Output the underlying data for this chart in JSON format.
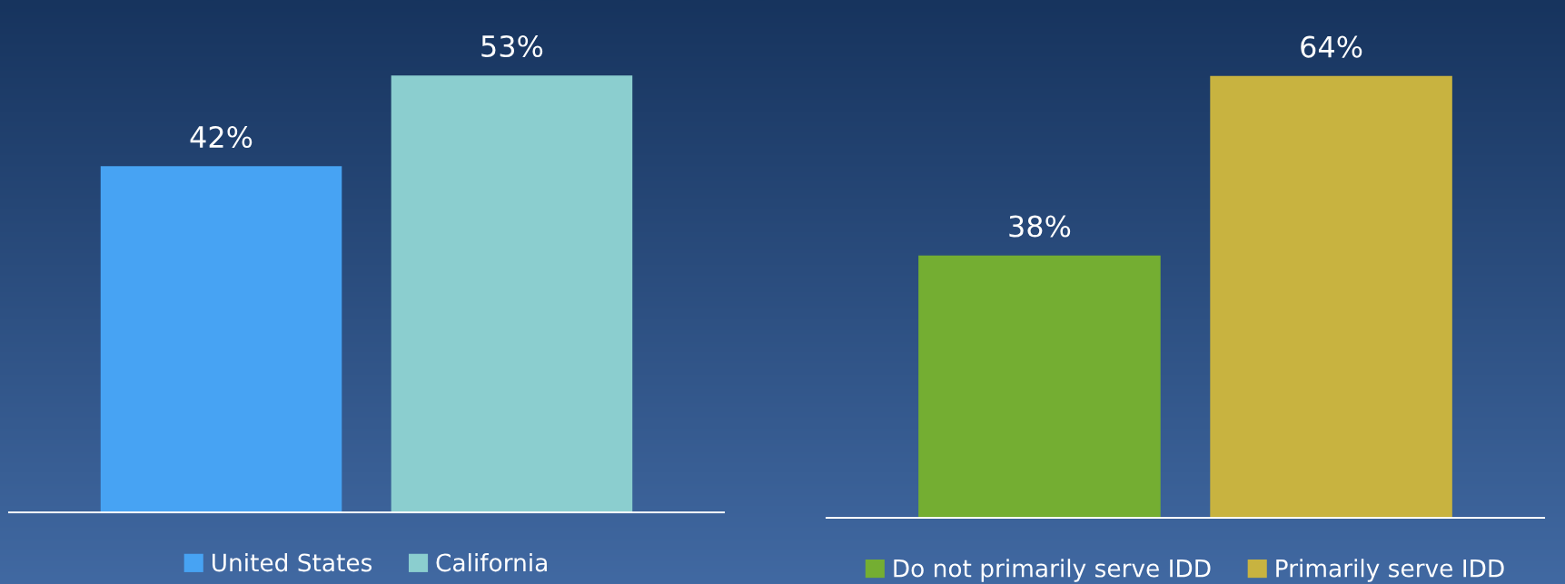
{
  "chart_data": [
    {
      "type": "bar",
      "categories": [
        null
      ],
      "legend": "bottom",
      "series": [
        {
          "name": "United States",
          "color": "#47a3f3",
          "values": [
            42
          ],
          "value_labels": [
            "42%"
          ]
        },
        {
          "name": "California",
          "color": "#8bcecf",
          "values": [
            53
          ],
          "value_labels": [
            "53%"
          ]
        }
      ]
    },
    {
      "type": "bar",
      "categories": [
        null
      ],
      "legend": "bottom",
      "series": [
        {
          "name": "Do not primarily serve IDD",
          "color": "#74ae32",
          "values": [
            38
          ],
          "value_labels": [
            "38%"
          ]
        },
        {
          "name": "Primarily serve IDD",
          "color": "#c8b340",
          "values": [
            64
          ],
          "value_labels": [
            "64%"
          ]
        }
      ]
    }
  ]
}
